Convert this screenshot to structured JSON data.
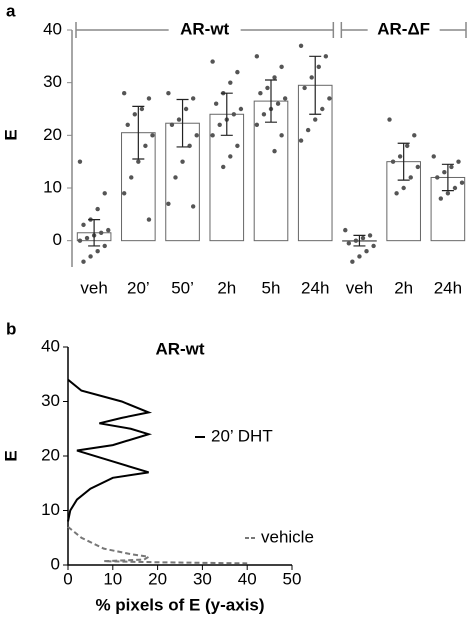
{
  "chart_data": [
    {
      "type": "bar",
      "panel": "a",
      "ylabel": "E",
      "group_labels": [
        "AR-wt",
        "AR-ΔF"
      ],
      "categories": [
        "veh",
        "20’",
        "50’",
        "2h",
        "5h",
        "24h",
        "veh",
        "2h",
        "24h"
      ],
      "values": [
        1.5,
        20.5,
        22.3,
        24,
        26.5,
        29.5,
        0,
        15,
        12
      ],
      "errors": [
        2.5,
        5,
        4.5,
        4,
        4,
        5.5,
        1,
        3.5,
        2.5
      ],
      "points": [
        [
          15,
          9,
          6,
          4,
          3,
          2,
          1.5,
          1,
          0.5,
          0,
          -1,
          -2,
          -3,
          -4
        ],
        [
          28,
          27,
          25,
          24,
          22,
          20,
          18,
          15,
          12,
          9,
          4
        ],
        [
          28,
          27,
          25,
          23,
          22,
          20,
          18,
          15,
          12,
          7,
          6.5
        ],
        [
          34,
          32,
          30,
          28,
          26,
          25,
          24,
          23,
          22,
          20,
          18,
          16,
          14
        ],
        [
          35,
          33,
          31,
          29,
          28,
          27,
          26,
          25,
          24,
          22,
          20,
          17
        ],
        [
          37,
          35,
          33,
          31,
          29,
          27,
          25,
          23,
          21,
          19
        ],
        [
          2,
          1,
          0.5,
          0,
          -0.5,
          -1,
          -2,
          -3,
          -4
        ],
        [
          23,
          20,
          18,
          16,
          15,
          14,
          12,
          10,
          9
        ],
        [
          16,
          15,
          14,
          13,
          12,
          11,
          10,
          9,
          8
        ]
      ],
      "color": "#ffffff",
      "ylim": [
        -5,
        40
      ],
      "yticks": [
        0,
        10,
        20,
        30,
        40
      ]
    },
    {
      "type": "line",
      "panel": "b",
      "title": "AR-wt",
      "ylabel": "E",
      "xlabel": "% pixels of E (y-axis)",
      "series": [
        {
          "name": "20’ DHT",
          "color": "#000000",
          "dash": false,
          "x": [
            0,
            3,
            12,
            18,
            12,
            7,
            14,
            18,
            10,
            2,
            10,
            18,
            10,
            5,
            2,
            0.5,
            0
          ],
          "y": [
            34,
            32,
            30,
            28,
            27,
            26,
            25,
            24,
            22,
            21,
            19,
            17,
            16,
            14,
            12,
            10,
            8
          ]
        },
        {
          "name": "vehicle",
          "color": "#777777",
          "dash": true,
          "x": [
            0,
            3,
            8,
            14,
            18,
            17,
            8,
            20,
            40
          ],
          "y": [
            7,
            5,
            3,
            2,
            1.5,
            1,
            0.7,
            0.5,
            0.3
          ]
        }
      ],
      "xlim": [
        0,
        50
      ],
      "xticks": [
        0,
        10,
        20,
        30,
        40,
        50
      ],
      "ylim": [
        0,
        40
      ],
      "yticks": [
        0,
        10,
        20,
        30,
        40
      ]
    }
  ]
}
